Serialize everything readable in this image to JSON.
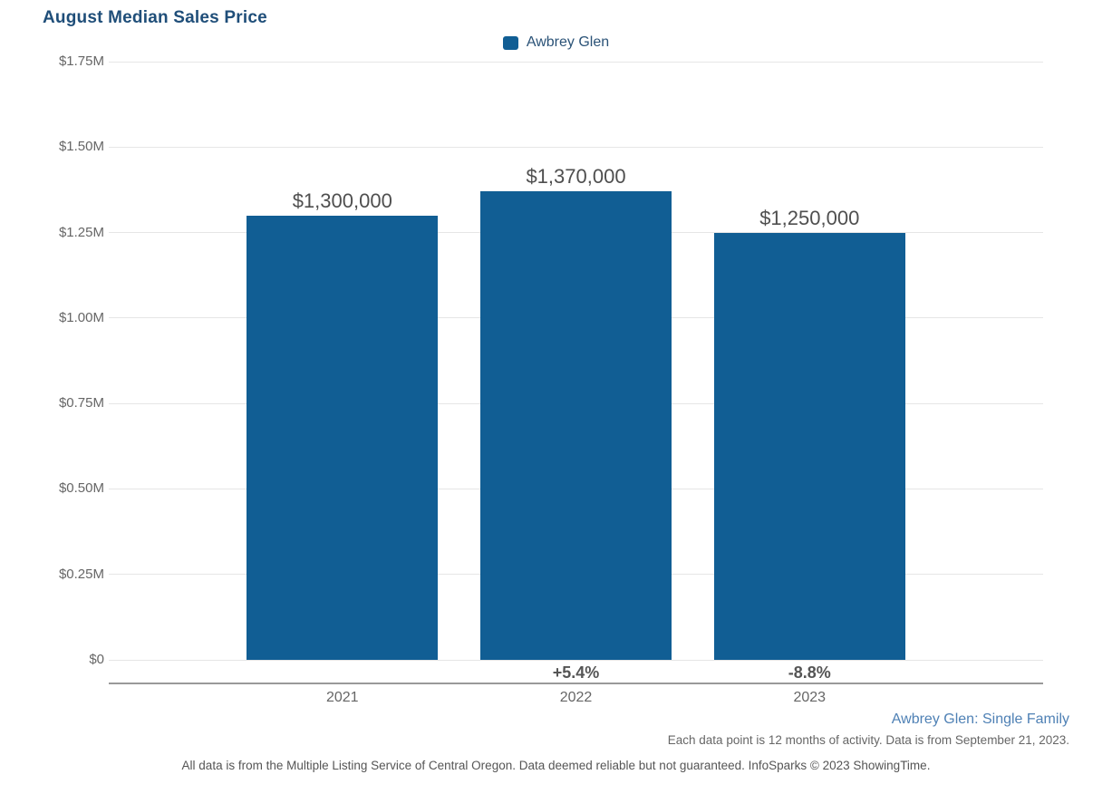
{
  "chart_data": {
    "type": "bar",
    "title": "August Median Sales Price",
    "legend": [
      "Awbrey Glen"
    ],
    "legend_position": "top-center",
    "categories": [
      "2021",
      "2022",
      "2023"
    ],
    "series": [
      {
        "name": "Awbrey Glen",
        "values": [
          1300000,
          1370000,
          1250000
        ],
        "value_labels": [
          "$1,300,000",
          "$1,370,000",
          "$1,250,000"
        ],
        "pct_change_labels": [
          "",
          "+5.4%",
          "-8.8%"
        ]
      }
    ],
    "xlabel": "",
    "ylabel": "",
    "ylim": [
      0,
      1750000
    ],
    "grid": true,
    "yticks": [
      {
        "value": 0,
        "label": "$0"
      },
      {
        "value": 250000,
        "label": "$0.25M"
      },
      {
        "value": 500000,
        "label": "$0.50M"
      },
      {
        "value": 750000,
        "label": "$0.75M"
      },
      {
        "value": 1000000,
        "label": "$1.00M"
      },
      {
        "value": 1250000,
        "label": "$1.25M"
      },
      {
        "value": 1500000,
        "label": "$1.50M"
      },
      {
        "value": 1750000,
        "label": "$1.75M"
      }
    ]
  },
  "colors": {
    "bar": "#115e94",
    "title_text": "#1f4e79",
    "legend_text": "#2a5277",
    "gridline": "#e6e6e6",
    "axis_line": "#999999",
    "value_label_text": "#4f4f4f",
    "pct_label_text": "#555555",
    "tick_label_text": "#666666",
    "series_footnote_text": "#4f81b5",
    "footnote_text": "#666666"
  },
  "footnotes": {
    "series_scope": "Awbrey Glen: Single Family",
    "data_note": "Each data point is 12 months of activity. Data is from September 21, 2023.",
    "disclaimer": "All data is from the Multiple Listing Service of Central Oregon. Data deemed reliable but not guaranteed. InfoSparks © 2023 ShowingTime."
  }
}
